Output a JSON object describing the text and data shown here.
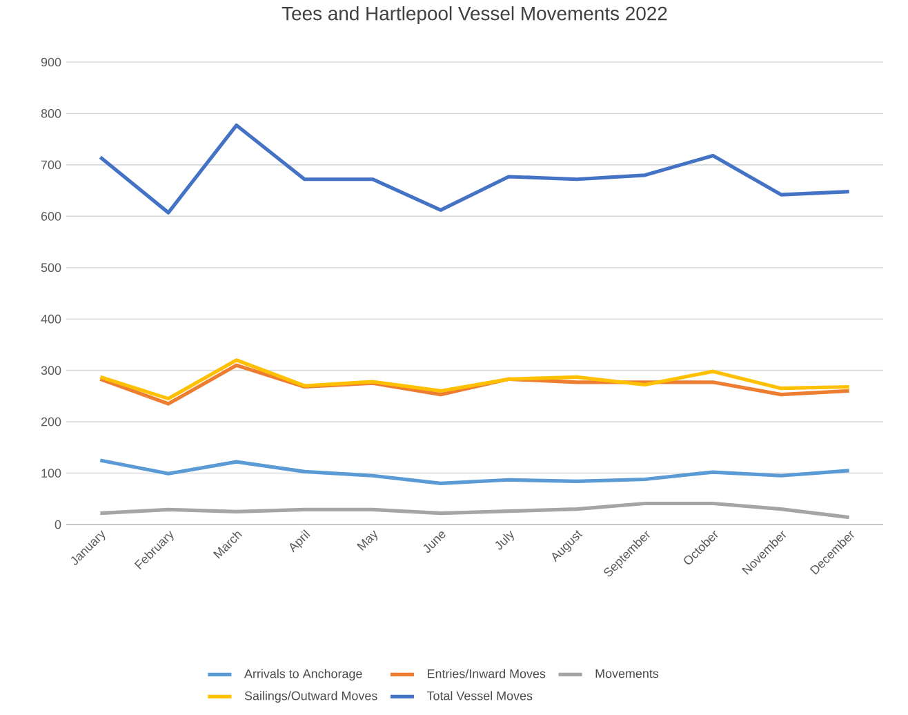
{
  "chart_data": {
    "type": "line",
    "title": "Tees and Hartlepool Vessel Movements 2022",
    "categories": [
      "January",
      "February",
      "March",
      "April",
      "May",
      "June",
      "July",
      "August",
      "September",
      "October",
      "November",
      "December"
    ],
    "series": [
      {
        "name": "Arrivals to Anchorage",
        "color": "#5b9bd5",
        "values": [
          125,
          99,
          122,
          103,
          95,
          80,
          87,
          84,
          88,
          102,
          95,
          105
        ]
      },
      {
        "name": "Entries/Inward Moves",
        "color": "#ed7d31",
        "values": [
          283,
          235,
          310,
          268,
          275,
          253,
          283,
          277,
          277,
          277,
          253,
          260
        ]
      },
      {
        "name": "Movements",
        "color": "#a5a5a5",
        "values": [
          22,
          29,
          25,
          29,
          29,
          22,
          26,
          30,
          41,
          41,
          30,
          14
        ]
      },
      {
        "name": "Sailings/Outward Moves",
        "color": "#ffc000",
        "values": [
          287,
          245,
          320,
          270,
          278,
          260,
          283,
          287,
          272,
          298,
          265,
          268
        ]
      },
      {
        "name": "Total Vessel Moves",
        "color": "#4472c4",
        "values": [
          715,
          607,
          777,
          672,
          672,
          612,
          677,
          672,
          680,
          718,
          642,
          648
        ]
      }
    ],
    "ylim": [
      0,
      900
    ],
    "yticks": [
      0,
      100,
      200,
      300,
      400,
      500,
      600,
      700,
      800,
      900
    ],
    "grid": "y",
    "legend": "bottom",
    "marker": "none",
    "line_style": "solid"
  }
}
